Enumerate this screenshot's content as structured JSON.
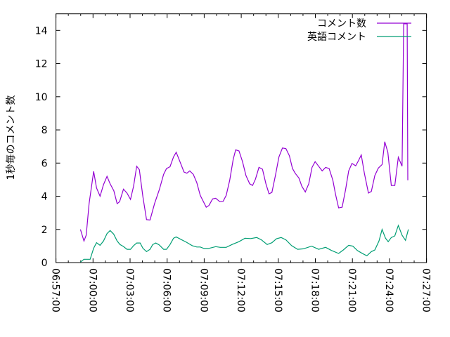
{
  "chart_data": {
    "type": "line",
    "title": "",
    "xlabel": "",
    "ylabel": "1秒毎のコメント数",
    "xlim": [
      "06:57:00",
      "07:27:00"
    ],
    "ylim": [
      0,
      15
    ],
    "x_ticks": [
      "06:57:00",
      "07:00:00",
      "07:03:00",
      "07:06:00",
      "07:09:00",
      "07:12:00",
      "07:15:00",
      "07:18:00",
      "07:21:00",
      "07:24:00",
      "07:27:00"
    ],
    "y_ticks": [
      0,
      2,
      4,
      6,
      8,
      10,
      12,
      14
    ],
    "grid": false,
    "legend_position": "top-right",
    "series": [
      {
        "name": "コメント数",
        "color": "#9400d3",
        "points": [
          [
            "06:58:59",
            2.0
          ],
          [
            "06:59:16",
            1.3
          ],
          [
            "06:59:27",
            1.65
          ],
          [
            "06:59:41",
            3.55
          ],
          [
            "07:00:03",
            5.5
          ],
          [
            "07:00:17",
            4.5
          ],
          [
            "07:00:34",
            4.0
          ],
          [
            "07:00:51",
            4.7
          ],
          [
            "07:01:08",
            5.2
          ],
          [
            "07:01:23",
            4.75
          ],
          [
            "07:01:41",
            4.33
          ],
          [
            "07:01:57",
            3.55
          ],
          [
            "07:02:09",
            3.67
          ],
          [
            "07:02:28",
            4.43
          ],
          [
            "07:02:45",
            4.19
          ],
          [
            "07:03:02",
            3.81
          ],
          [
            "07:03:17",
            4.61
          ],
          [
            "07:03:32",
            5.81
          ],
          [
            "07:03:45",
            5.6
          ],
          [
            "07:04:02",
            3.98
          ],
          [
            "07:04:20",
            2.59
          ],
          [
            "07:04:37",
            2.57
          ],
          [
            "07:04:59",
            3.55
          ],
          [
            "07:05:22",
            4.4
          ],
          [
            "07:05:43",
            5.32
          ],
          [
            "07:05:57",
            5.67
          ],
          [
            "07:06:14",
            5.78
          ],
          [
            "07:06:31",
            6.37
          ],
          [
            "07:06:44",
            6.65
          ],
          [
            "07:07:02",
            6.09
          ],
          [
            "07:07:22",
            5.46
          ],
          [
            "07:07:36",
            5.39
          ],
          [
            "07:07:50",
            5.53
          ],
          [
            "07:08:07",
            5.32
          ],
          [
            "07:08:24",
            4.82
          ],
          [
            "07:08:41",
            4.05
          ],
          [
            "07:09:10",
            3.34
          ],
          [
            "07:09:23",
            3.44
          ],
          [
            "07:09:41",
            3.84
          ],
          [
            "07:09:56",
            3.88
          ],
          [
            "07:10:16",
            3.67
          ],
          [
            "07:10:32",
            3.69
          ],
          [
            "07:10:47",
            4.05
          ],
          [
            "07:11:04",
            4.96
          ],
          [
            "07:11:21",
            6.23
          ],
          [
            "07:11:33",
            6.8
          ],
          [
            "07:11:49",
            6.73
          ],
          [
            "07:12:06",
            6.09
          ],
          [
            "07:12:23",
            5.25
          ],
          [
            "07:12:41",
            4.75
          ],
          [
            "07:12:55",
            4.65
          ],
          [
            "07:13:09",
            5.03
          ],
          [
            "07:13:26",
            5.74
          ],
          [
            "07:13:43",
            5.63
          ],
          [
            "07:14:00",
            4.75
          ],
          [
            "07:14:15",
            4.15
          ],
          [
            "07:14:29",
            4.23
          ],
          [
            "07:14:46",
            5.25
          ],
          [
            "07:15:03",
            6.37
          ],
          [
            "07:15:20",
            6.91
          ],
          [
            "07:15:37",
            6.87
          ],
          [
            "07:15:54",
            6.44
          ],
          [
            "07:16:09",
            5.67
          ],
          [
            "07:16:22",
            5.39
          ],
          [
            "07:16:40",
            5.1
          ],
          [
            "07:16:54",
            4.61
          ],
          [
            "07:17:11",
            4.26
          ],
          [
            "07:17:28",
            4.75
          ],
          [
            "07:17:44",
            5.74
          ],
          [
            "07:17:59",
            6.09
          ],
          [
            "07:18:16",
            5.81
          ],
          [
            "07:18:33",
            5.53
          ],
          [
            "07:18:50",
            5.74
          ],
          [
            "07:19:07",
            5.67
          ],
          [
            "07:19:25",
            4.96
          ],
          [
            "07:19:38",
            4.12
          ],
          [
            "07:19:53",
            3.3
          ],
          [
            "07:20:10",
            3.34
          ],
          [
            "07:20:27",
            4.4
          ],
          [
            "07:20:42",
            5.53
          ],
          [
            "07:20:58",
            5.98
          ],
          [
            "07:21:16",
            5.84
          ],
          [
            "07:21:30",
            6.16
          ],
          [
            "07:21:43",
            6.49
          ],
          [
            "07:21:58",
            5.39
          ],
          [
            "07:22:18",
            4.19
          ],
          [
            "07:22:32",
            4.29
          ],
          [
            "07:22:49",
            5.25
          ],
          [
            "07:23:06",
            5.7
          ],
          [
            "07:23:24",
            5.91
          ],
          [
            "07:23:37",
            7.29
          ],
          [
            "07:23:52",
            6.65
          ],
          [
            "07:24:09",
            4.65
          ],
          [
            "07:24:26",
            4.65
          ],
          [
            "07:24:43",
            6.35
          ],
          [
            "07:25:01",
            5.81
          ],
          [
            "07:25:02",
            6.73
          ],
          [
            "07:25:09",
            14.4
          ],
          [
            "07:25:26",
            14.4
          ],
          [
            "07:25:29",
            4.96
          ]
        ]
      },
      {
        "name": "英語コメント",
        "color": "#009e73",
        "points": [
          [
            "06:58:59",
            0.03
          ],
          [
            "06:59:16",
            0.2
          ],
          [
            "06:59:46",
            0.2
          ],
          [
            "07:00:03",
            0.87
          ],
          [
            "07:00:17",
            1.2
          ],
          [
            "07:00:34",
            1.04
          ],
          [
            "07:00:51",
            1.3
          ],
          [
            "07:01:08",
            1.75
          ],
          [
            "07:01:23",
            1.93
          ],
          [
            "07:01:40",
            1.72
          ],
          [
            "07:01:57",
            1.3
          ],
          [
            "07:02:11",
            1.09
          ],
          [
            "07:02:28",
            0.97
          ],
          [
            "07:02:45",
            0.8
          ],
          [
            "07:03:02",
            0.8
          ],
          [
            "07:03:17",
            1.02
          ],
          [
            "07:03:32",
            1.18
          ],
          [
            "07:03:49",
            1.18
          ],
          [
            "07:04:02",
            0.87
          ],
          [
            "07:04:20",
            0.66
          ],
          [
            "07:04:37",
            0.8
          ],
          [
            "07:04:50",
            1.09
          ],
          [
            "07:05:05",
            1.18
          ],
          [
            "07:05:22",
            1.06
          ],
          [
            "07:05:43",
            0.8
          ],
          [
            "07:05:57",
            0.8
          ],
          [
            "07:06:14",
            1.09
          ],
          [
            "07:06:31",
            1.47
          ],
          [
            "07:06:44",
            1.55
          ],
          [
            "07:07:05",
            1.41
          ],
          [
            "07:07:33",
            1.23
          ],
          [
            "07:08:02",
            1.02
          ],
          [
            "07:08:24",
            0.94
          ],
          [
            "07:08:41",
            0.94
          ],
          [
            "07:08:59",
            0.85
          ],
          [
            "07:09:21",
            0.85
          ],
          [
            "07:09:56",
            0.96
          ],
          [
            "07:10:18",
            0.92
          ],
          [
            "07:10:47",
            0.92
          ],
          [
            "07:11:15",
            1.09
          ],
          [
            "07:11:49",
            1.26
          ],
          [
            "07:12:18",
            1.47
          ],
          [
            "07:12:46",
            1.45
          ],
          [
            "07:13:15",
            1.51
          ],
          [
            "07:13:38",
            1.37
          ],
          [
            "07:14:06",
            1.09
          ],
          [
            "07:14:29",
            1.2
          ],
          [
            "07:14:51",
            1.44
          ],
          [
            "07:15:14",
            1.51
          ],
          [
            "07:15:37",
            1.37
          ],
          [
            "07:16:05",
            1.02
          ],
          [
            "07:16:34",
            0.8
          ],
          [
            "07:17:02",
            0.83
          ],
          [
            "07:17:42",
            0.99
          ],
          [
            "07:18:16",
            0.8
          ],
          [
            "07:18:50",
            0.92
          ],
          [
            "07:19:19",
            0.73
          ],
          [
            "07:19:53",
            0.55
          ],
          [
            "07:20:16",
            0.76
          ],
          [
            "07:20:42",
            1.04
          ],
          [
            "07:21:02",
            0.99
          ],
          [
            "07:21:24",
            0.73
          ],
          [
            "07:21:47",
            0.56
          ],
          [
            "07:22:10",
            0.41
          ],
          [
            "07:22:32",
            0.66
          ],
          [
            "07:22:49",
            0.76
          ],
          [
            "07:23:09",
            1.3
          ],
          [
            "07:23:24",
            2.0
          ],
          [
            "07:23:41",
            1.47
          ],
          [
            "07:23:54",
            1.26
          ],
          [
            "07:24:09",
            1.51
          ],
          [
            "07:24:26",
            1.61
          ],
          [
            "07:24:43",
            2.24
          ],
          [
            "07:25:01",
            1.65
          ],
          [
            "07:25:18",
            1.34
          ],
          [
            "07:25:32",
            2.0
          ]
        ]
      }
    ]
  }
}
